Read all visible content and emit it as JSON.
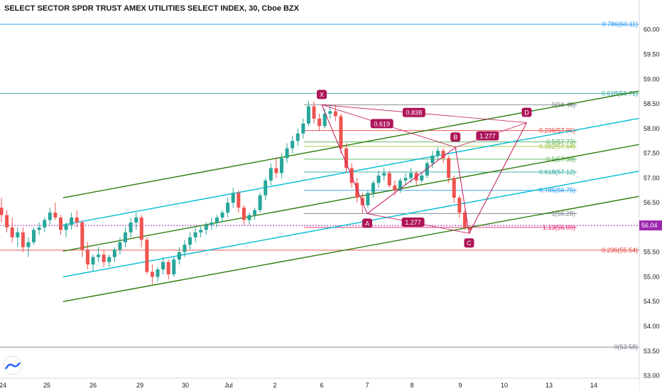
{
  "chart_data": {
    "type": "candlestick",
    "title": "SELECT SECTOR SPDR TRUST AMEX UTILITIES SELECT INDEX, 30, Cboe BZX",
    "ylim": [
      52.95,
      60.6
    ],
    "y_ticks": [
      "60.00",
      "59.50",
      "59.00",
      "58.50",
      "58.00",
      "57.50",
      "57.00",
      "56.50",
      "56.00",
      "55.50",
      "55.00",
      "54.50",
      "54.00",
      "53.50",
      "53.00"
    ],
    "y_tick_values": [
      60.0,
      59.5,
      59.0,
      58.5,
      58.0,
      57.5,
      57.0,
      56.5,
      56.0,
      55.5,
      55.0,
      54.5,
      54.0,
      53.5,
      53.0
    ],
    "x_ticks": [
      {
        "label": "24",
        "t": 0
      },
      {
        "label": "25",
        "t": 1
      },
      {
        "label": "26",
        "t": 2
      },
      {
        "label": "29",
        "t": 3
      },
      {
        "label": "30",
        "t": 4
      },
      {
        "label": "Jul",
        "t": 5
      },
      {
        "label": "2",
        "t": 6
      },
      {
        "label": "6",
        "t": 7
      },
      {
        "label": "7",
        "t": 8
      },
      {
        "label": "8",
        "t": 9
      },
      {
        "label": "9",
        "t": 10
      },
      {
        "label": "10",
        "t": 11
      },
      {
        "label": "13",
        "t": 12
      },
      {
        "label": "14",
        "t": 13
      }
    ],
    "last_price": "56.04",
    "last_price_value": 56.04,
    "fib_levels": [
      {
        "label": "0.786(60.11)",
        "value": 60.11,
        "color": "#2196f3"
      },
      {
        "label": "0.618(58.71)",
        "value": 58.71,
        "color": "#26a69a"
      },
      {
        "label": "0(58.48)",
        "value": 58.48,
        "color": "#787b86"
      },
      {
        "label": "0.236(57.96)",
        "value": 57.96,
        "color": "#e53935"
      },
      {
        "label": "0.5(57.73)",
        "value": 57.73,
        "color": "#4caf50"
      },
      {
        "label": "0.382(57.64)",
        "value": 57.64,
        "color": "#9bbf3a"
      },
      {
        "label": "0.5(57.38)",
        "value": 57.38,
        "color": "#4caf50"
      },
      {
        "label": "0.618(57.12)",
        "value": 57.12,
        "color": "#26a69a"
      },
      {
        "label": "0.786(56.75)",
        "value": 56.75,
        "color": "#2196f3"
      },
      {
        "label": "1(56.28)",
        "value": 56.28,
        "color": "#787b86"
      },
      {
        "label": "1.13(56.00)",
        "value": 56.0,
        "color": "#e91e63"
      },
      {
        "label": "0.236(55.54)",
        "value": 55.54,
        "color": "#e53935"
      },
      {
        "label": "0(53.58)",
        "value": 53.58,
        "color": "#787b86"
      }
    ],
    "pattern_points": [
      {
        "label": "X",
        "t": 7.0,
        "y": 58.48
      },
      {
        "label": "A",
        "t": 8.0,
        "y": 56.28
      },
      {
        "label": "B",
        "t": 9.9,
        "y": 57.62
      },
      {
        "label": "C",
        "t": 10.2,
        "y": 55.88
      },
      {
        "label": "D",
        "t": 11.5,
        "y": 58.12
      }
    ],
    "pattern_ratios": [
      "0.838",
      "0.619",
      "1.277",
      "1.277"
    ],
    "candles": [
      [
        56.4,
        56.6,
        56.1,
        56.25
      ],
      [
        56.25,
        56.35,
        55.9,
        56.0
      ],
      [
        56.0,
        56.2,
        55.7,
        55.8
      ],
      [
        55.8,
        56.0,
        55.6,
        55.9
      ],
      [
        55.9,
        56.0,
        55.5,
        55.6
      ],
      [
        55.6,
        55.8,
        55.4,
        55.7
      ],
      [
        55.7,
        56.0,
        55.65,
        55.95
      ],
      [
        55.95,
        56.1,
        55.85,
        56.0
      ],
      [
        56.0,
        56.2,
        55.9,
        56.15
      ],
      [
        56.15,
        56.4,
        56.05,
        56.3
      ],
      [
        56.3,
        56.5,
        56.15,
        56.2
      ],
      [
        56.2,
        56.25,
        55.85,
        55.95
      ],
      [
        55.95,
        56.1,
        55.8,
        56.05
      ],
      [
        56.05,
        56.3,
        55.95,
        56.2
      ],
      [
        56.2,
        56.35,
        56.0,
        56.1
      ],
      [
        56.1,
        56.15,
        55.4,
        55.55
      ],
      [
        55.55,
        55.7,
        55.15,
        55.25
      ],
      [
        55.25,
        55.45,
        55.1,
        55.4
      ],
      [
        55.4,
        55.6,
        55.3,
        55.45
      ],
      [
        55.45,
        55.55,
        55.2,
        55.3
      ],
      [
        55.3,
        55.45,
        55.2,
        55.4
      ],
      [
        55.4,
        55.6,
        55.3,
        55.55
      ],
      [
        55.55,
        55.8,
        55.45,
        55.7
      ],
      [
        55.7,
        56.0,
        55.6,
        55.9
      ],
      [
        55.9,
        56.2,
        55.8,
        56.1
      ],
      [
        56.1,
        56.3,
        55.95,
        56.2
      ],
      [
        56.2,
        56.25,
        55.6,
        55.75
      ],
      [
        55.75,
        55.8,
        55.05,
        55.1
      ],
      [
        55.1,
        55.25,
        54.85,
        55.0
      ],
      [
        55.0,
        55.2,
        54.9,
        55.15
      ],
      [
        55.15,
        55.4,
        55.05,
        55.3
      ],
      [
        55.3,
        55.35,
        54.95,
        55.05
      ],
      [
        55.05,
        55.4,
        55.0,
        55.35
      ],
      [
        55.35,
        55.6,
        55.25,
        55.5
      ],
      [
        55.5,
        55.75,
        55.4,
        55.65
      ],
      [
        55.65,
        55.9,
        55.55,
        55.8
      ],
      [
        55.8,
        56.0,
        55.7,
        55.9
      ],
      [
        55.9,
        56.05,
        55.8,
        55.95
      ],
      [
        55.95,
        56.1,
        55.85,
        56.05
      ],
      [
        56.05,
        56.2,
        55.95,
        56.1
      ],
      [
        56.1,
        56.25,
        56.0,
        56.2
      ],
      [
        56.2,
        56.35,
        56.1,
        56.3
      ],
      [
        56.3,
        56.6,
        56.2,
        56.5
      ],
      [
        56.5,
        56.8,
        56.4,
        56.7
      ],
      [
        56.7,
        56.75,
        56.3,
        56.4
      ],
      [
        56.4,
        56.45,
        56.05,
        56.15
      ],
      [
        56.15,
        56.3,
        56.05,
        56.25
      ],
      [
        56.25,
        56.4,
        56.15,
        56.35
      ],
      [
        56.35,
        56.7,
        56.3,
        56.65
      ],
      [
        56.65,
        57.0,
        56.55,
        56.95
      ],
      [
        56.95,
        57.3,
        56.85,
        57.2
      ],
      [
        57.2,
        57.4,
        57.0,
        57.1
      ],
      [
        57.1,
        57.5,
        57.0,
        57.4
      ],
      [
        57.4,
        57.7,
        57.3,
        57.6
      ],
      [
        57.6,
        57.85,
        57.5,
        57.75
      ],
      [
        57.75,
        58.0,
        57.65,
        57.9
      ],
      [
        57.9,
        58.2,
        57.8,
        58.1
      ],
      [
        58.1,
        58.55,
        58.05,
        58.45
      ],
      [
        58.45,
        58.55,
        58.1,
        58.2
      ],
      [
        58.2,
        58.3,
        57.95,
        58.05
      ],
      [
        58.05,
        58.4,
        58.0,
        58.3
      ],
      [
        58.3,
        58.45,
        58.2,
        58.35
      ],
      [
        58.35,
        58.48,
        58.15,
        58.25
      ],
      [
        58.25,
        58.3,
        57.5,
        57.6
      ],
      [
        57.6,
        57.7,
        57.1,
        57.2
      ],
      [
        57.2,
        57.3,
        56.8,
        56.9
      ],
      [
        56.9,
        57.0,
        56.5,
        56.6
      ],
      [
        56.6,
        56.7,
        56.28,
        56.45
      ],
      [
        56.45,
        56.75,
        56.4,
        56.7
      ],
      [
        56.7,
        56.95,
        56.6,
        56.9
      ],
      [
        56.9,
        57.15,
        56.8,
        57.05
      ],
      [
        57.05,
        57.2,
        56.95,
        57.1
      ],
      [
        57.1,
        57.15,
        56.8,
        56.85
      ],
      [
        56.85,
        56.95,
        56.65,
        56.75
      ],
      [
        56.75,
        57.0,
        56.7,
        56.95
      ],
      [
        56.95,
        57.1,
        56.85,
        57.0
      ],
      [
        57.0,
        57.2,
        56.9,
        57.1
      ],
      [
        57.1,
        57.15,
        56.85,
        56.95
      ],
      [
        56.95,
        57.1,
        56.9,
        57.05
      ],
      [
        57.05,
        57.35,
        57.0,
        57.3
      ],
      [
        57.3,
        57.55,
        57.2,
        57.45
      ],
      [
        57.45,
        57.62,
        57.35,
        57.55
      ],
      [
        57.55,
        57.6,
        57.3,
        57.4
      ],
      [
        57.4,
        57.45,
        56.9,
        57.0
      ],
      [
        57.0,
        57.05,
        56.5,
        56.6
      ],
      [
        56.6,
        56.65,
        56.2,
        56.3
      ],
      [
        56.3,
        56.35,
        55.95,
        56.0
      ],
      [
        56.0,
        56.05,
        55.88,
        55.95
      ]
    ]
  }
}
